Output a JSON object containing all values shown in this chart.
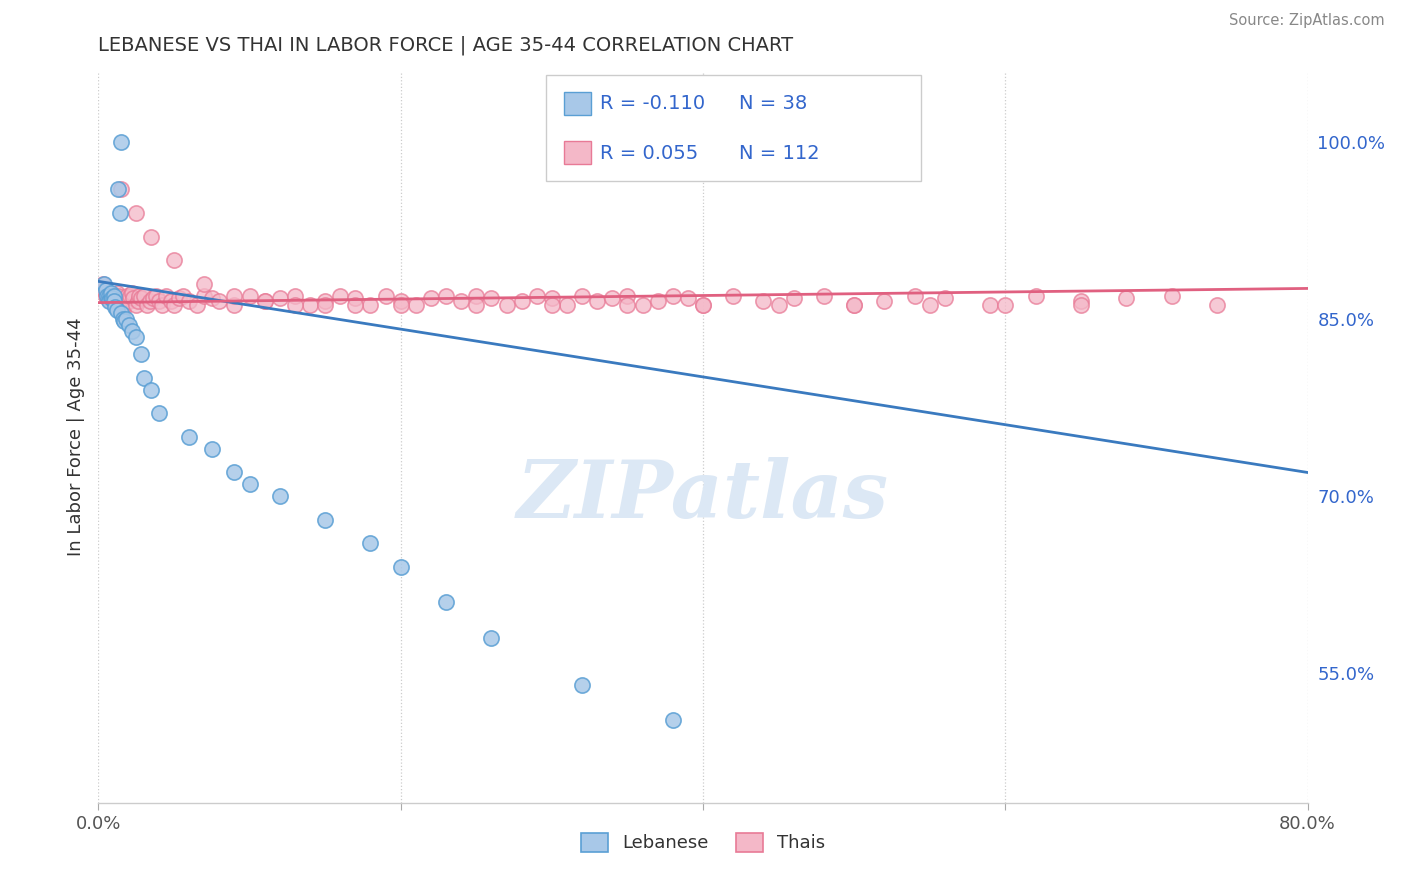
{
  "title": "LEBANESE VS THAI IN LABOR FORCE | AGE 35-44 CORRELATION CHART",
  "source_text": "Source: ZipAtlas.com",
  "ylabel": "In Labor Force | Age 35-44",
  "xlim": [
    0.0,
    0.8
  ],
  "ylim": [
    0.44,
    1.06
  ],
  "xtick_vals": [
    0.0,
    0.2,
    0.4,
    0.6,
    0.8
  ],
  "xtick_labels": [
    "0.0%",
    "",
    "",
    "",
    "80.0%"
  ],
  "yticks_right": [
    0.55,
    0.7,
    0.85,
    1.0
  ],
  "ytick_labels_right": [
    "55.0%",
    "70.0%",
    "85.0%",
    "100.0%"
  ],
  "grid_color": "#cccccc",
  "background_color": "#ffffff",
  "watermark": "ZIPatlas",
  "watermark_color": "#dce8f5",
  "legend_R1": "-0.110",
  "legend_N1": "38",
  "legend_R2": "0.055",
  "legend_N2": "112",
  "blue_fill": "#a8c8e8",
  "blue_edge": "#5a9fd4",
  "pink_fill": "#f4b8c8",
  "pink_edge": "#e87a96",
  "blue_line_color": "#3a7abf",
  "pink_line_color": "#e06080",
  "legend_text_color": "#3366cc",
  "title_color": "#333333",
  "ylabel_color": "#333333",
  "right_tick_color": "#3366cc",
  "blue_points_x": [
    0.004,
    0.005,
    0.006,
    0.007,
    0.007,
    0.008,
    0.008,
    0.009,
    0.01,
    0.01,
    0.011,
    0.012,
    0.013,
    0.014,
    0.015,
    0.015,
    0.016,
    0.017,
    0.018,
    0.02,
    0.022,
    0.025,
    0.028,
    0.03,
    0.035,
    0.04,
    0.06,
    0.075,
    0.09,
    0.1,
    0.12,
    0.15,
    0.18,
    0.2,
    0.23,
    0.26,
    0.32,
    0.38
  ],
  "blue_points_y": [
    0.88,
    0.875,
    0.87,
    0.87,
    0.865,
    0.868,
    0.872,
    0.868,
    0.87,
    0.865,
    0.86,
    0.858,
    0.96,
    0.94,
    1.0,
    0.855,
    0.85,
    0.848,
    0.85,
    0.845,
    0.84,
    0.835,
    0.82,
    0.8,
    0.79,
    0.77,
    0.75,
    0.74,
    0.72,
    0.71,
    0.7,
    0.68,
    0.66,
    0.64,
    0.61,
    0.58,
    0.54,
    0.51
  ],
  "pink_points_x": [
    0.003,
    0.004,
    0.005,
    0.006,
    0.006,
    0.007,
    0.008,
    0.008,
    0.009,
    0.01,
    0.01,
    0.011,
    0.012,
    0.012,
    0.013,
    0.014,
    0.015,
    0.016,
    0.017,
    0.018,
    0.019,
    0.02,
    0.021,
    0.022,
    0.023,
    0.025,
    0.026,
    0.027,
    0.028,
    0.03,
    0.032,
    0.034,
    0.036,
    0.038,
    0.04,
    0.042,
    0.045,
    0.048,
    0.05,
    0.053,
    0.056,
    0.06,
    0.065,
    0.07,
    0.075,
    0.08,
    0.09,
    0.1,
    0.11,
    0.12,
    0.13,
    0.14,
    0.15,
    0.16,
    0.17,
    0.18,
    0.19,
    0.2,
    0.21,
    0.22,
    0.23,
    0.24,
    0.25,
    0.26,
    0.27,
    0.28,
    0.29,
    0.3,
    0.31,
    0.32,
    0.33,
    0.34,
    0.35,
    0.36,
    0.37,
    0.38,
    0.39,
    0.4,
    0.42,
    0.44,
    0.46,
    0.48,
    0.5,
    0.52,
    0.54,
    0.56,
    0.59,
    0.62,
    0.65,
    0.68,
    0.71,
    0.74,
    0.015,
    0.025,
    0.035,
    0.05,
    0.07,
    0.09,
    0.11,
    0.13,
    0.15,
    0.17,
    0.2,
    0.25,
    0.3,
    0.35,
    0.4,
    0.45,
    0.5,
    0.55,
    0.6,
    0.65
  ],
  "pink_points_y": [
    0.88,
    0.875,
    0.87,
    0.868,
    0.872,
    0.87,
    0.865,
    0.868,
    0.87,
    0.865,
    0.87,
    0.862,
    0.868,
    0.872,
    0.87,
    0.865,
    0.86,
    0.858,
    0.862,
    0.868,
    0.87,
    0.865,
    0.87,
    0.872,
    0.868,
    0.862,
    0.865,
    0.87,
    0.868,
    0.87,
    0.862,
    0.865,
    0.868,
    0.87,
    0.865,
    0.862,
    0.87,
    0.865,
    0.862,
    0.868,
    0.87,
    0.865,
    0.862,
    0.87,
    0.868,
    0.865,
    0.862,
    0.87,
    0.865,
    0.868,
    0.87,
    0.862,
    0.865,
    0.87,
    0.868,
    0.862,
    0.87,
    0.865,
    0.862,
    0.868,
    0.87,
    0.865,
    0.87,
    0.868,
    0.862,
    0.865,
    0.87,
    0.868,
    0.862,
    0.87,
    0.865,
    0.868,
    0.87,
    0.862,
    0.865,
    0.87,
    0.868,
    0.862,
    0.87,
    0.865,
    0.868,
    0.87,
    0.862,
    0.865,
    0.87,
    0.868,
    0.862,
    0.87,
    0.865,
    0.868,
    0.87,
    0.862,
    0.96,
    0.94,
    0.92,
    0.9,
    0.88,
    0.87,
    0.865,
    0.862,
    0.862,
    0.862,
    0.862,
    0.862,
    0.862,
    0.862,
    0.862,
    0.862,
    0.862,
    0.862,
    0.862,
    0.862
  ]
}
